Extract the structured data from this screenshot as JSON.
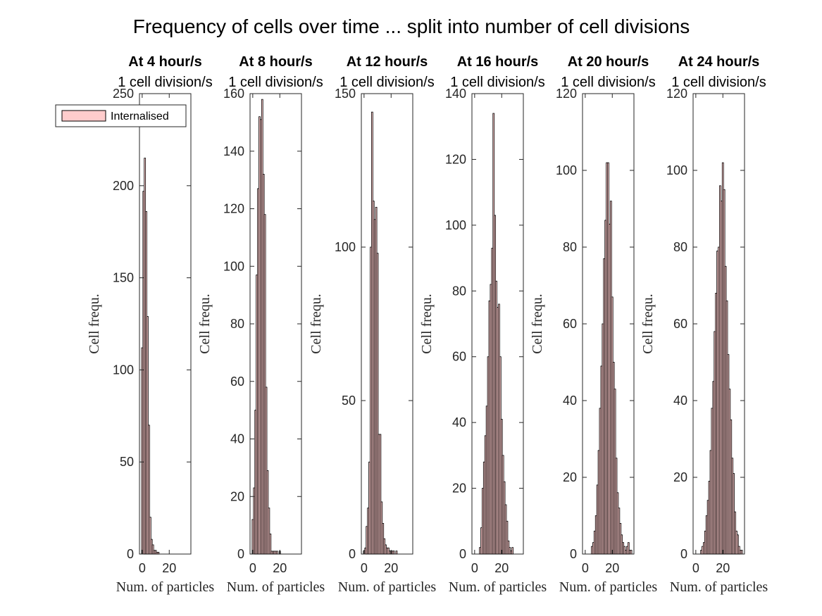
{
  "figure_title": "Frequency of cells over time ... split into number of cell divisions",
  "legend": {
    "label": "Internalised",
    "color": "#ffcccc",
    "edge": "#000000"
  },
  "colors": {
    "bar_fill": "#ffcccc",
    "bar_edge": "#000000",
    "axis": "#262626"
  },
  "chart_data": [
    {
      "type": "bar",
      "title": "At 4 hour/s",
      "subtitle": "1 cell division/s",
      "xlabel": "Num. of particles",
      "ylabel": "Cell frequ.",
      "xlim": [
        -2,
        36
      ],
      "ylim": [
        0,
        250
      ],
      "xticks": [
        0,
        20
      ],
      "yticks": [
        0,
        50,
        100,
        150,
        200,
        250
      ],
      "x": [
        0,
        1,
        2,
        3,
        4,
        5,
        6,
        7,
        8,
        9,
        10,
        11,
        12,
        13
      ],
      "values": [
        112,
        197,
        215,
        186,
        129,
        70,
        20,
        8,
        5,
        2,
        2,
        1,
        1,
        0
      ],
      "legend": "top-left"
    },
    {
      "type": "bar",
      "title": "At 8 hour/s",
      "subtitle": "1 cell division/s",
      "xlabel": "Num. of particles",
      "ylabel": "Cell frequ.",
      "xlim": [
        -2,
        36
      ],
      "ylim": [
        0,
        160
      ],
      "xticks": [
        0,
        20
      ],
      "yticks": [
        0,
        20,
        40,
        60,
        80,
        100,
        120,
        140,
        160
      ],
      "x": [
        0,
        1,
        2,
        3,
        4,
        5,
        6,
        7,
        8,
        9,
        10,
        11,
        12,
        13,
        14,
        15,
        16,
        17,
        18,
        19,
        20
      ],
      "values": [
        12,
        23,
        50,
        97,
        127,
        152,
        151,
        158,
        132,
        118,
        58,
        29,
        16,
        7,
        1,
        1,
        1,
        1,
        1,
        0,
        1
      ]
    },
    {
      "type": "bar",
      "title": "At 12 hour/s",
      "subtitle": "1 cell division/s",
      "xlabel": "Num. of particles",
      "ylabel": "Cell frequ.",
      "xlim": [
        -2,
        36
      ],
      "ylim": [
        0,
        150
      ],
      "xticks": [
        0,
        20
      ],
      "yticks": [
        0,
        50,
        100,
        150
      ],
      "x": [
        0,
        1,
        2,
        3,
        4,
        5,
        6,
        7,
        8,
        9,
        10,
        11,
        12,
        13,
        14,
        15,
        16,
        17,
        18,
        19,
        20,
        21,
        22,
        23,
        24,
        25
      ],
      "values": [
        1,
        2,
        9,
        15,
        30,
        100,
        144,
        115,
        109,
        113,
        98,
        39,
        39,
        17,
        10,
        5,
        3,
        2,
        2,
        1,
        1,
        1,
        1,
        0,
        1,
        0
      ]
    },
    {
      "type": "bar",
      "title": "At 16 hour/s",
      "subtitle": "1 cell division/s",
      "xlabel": "Num. of particles",
      "ylabel": "Cell frequ.",
      "xlim": [
        -2,
        36
      ],
      "ylim": [
        0,
        140
      ],
      "xticks": [
        0,
        20
      ],
      "yticks": [
        0,
        20,
        40,
        60,
        80,
        100,
        120,
        140
      ],
      "x": [
        0,
        1,
        2,
        3,
        4,
        5,
        6,
        7,
        8,
        9,
        10,
        11,
        12,
        13,
        14,
        15,
        16,
        17,
        18,
        19,
        20,
        21,
        22,
        23,
        24,
        25,
        26,
        27,
        28,
        29
      ],
      "values": [
        0,
        0,
        0,
        0,
        2,
        8,
        20,
        28,
        36,
        45,
        60,
        77,
        82,
        93,
        134,
        103,
        83,
        75,
        76,
        60,
        41,
        30,
        22,
        15,
        10,
        4,
        2,
        1,
        2,
        0
      ]
    },
    {
      "type": "bar",
      "title": "At 20 hour/s",
      "subtitle": "1 cell division/s",
      "xlabel": "Num. of particles",
      "ylabel": "Cell frequ.",
      "xlim": [
        -2,
        36
      ],
      "ylim": [
        0,
        120
      ],
      "xticks": [
        0,
        20
      ],
      "yticks": [
        0,
        20,
        40,
        60,
        80,
        100,
        120
      ],
      "x": [
        5,
        6,
        7,
        8,
        9,
        10,
        11,
        12,
        13,
        14,
        15,
        16,
        17,
        18,
        19,
        20,
        21,
        22,
        23,
        24,
        25,
        26,
        27,
        28,
        29,
        30,
        31,
        32,
        33,
        34
      ],
      "values": [
        2,
        3,
        6,
        10,
        18,
        27,
        38,
        49,
        60,
        77,
        87,
        102,
        102,
        86,
        92,
        67,
        50,
        43,
        25,
        16,
        12,
        8,
        5,
        3,
        2,
        1,
        2,
        3,
        1,
        1
      ]
    },
    {
      "type": "bar",
      "title": "At 24 hour/s",
      "subtitle": "1 cell division/s",
      "xlabel": "Num. of particles",
      "ylabel": "Cell frequ.",
      "xlim": [
        -2,
        36
      ],
      "ylim": [
        0,
        120
      ],
      "xticks": [
        0,
        20
      ],
      "yticks": [
        0,
        20,
        40,
        60,
        80,
        100,
        120
      ],
      "x": [
        4,
        5,
        6,
        7,
        8,
        9,
        10,
        11,
        12,
        13,
        14,
        15,
        16,
        17,
        18,
        19,
        20,
        21,
        22,
        23,
        24,
        25,
        26,
        27,
        28,
        29,
        30,
        31,
        32,
        33,
        34
      ],
      "values": [
        1,
        2,
        3,
        6,
        10,
        14,
        19,
        27,
        38,
        45,
        58,
        68,
        79,
        80,
        96,
        92,
        102,
        95,
        75,
        66,
        52,
        43,
        35,
        25,
        21,
        11,
        6,
        5,
        2,
        1,
        1
      ]
    }
  ]
}
